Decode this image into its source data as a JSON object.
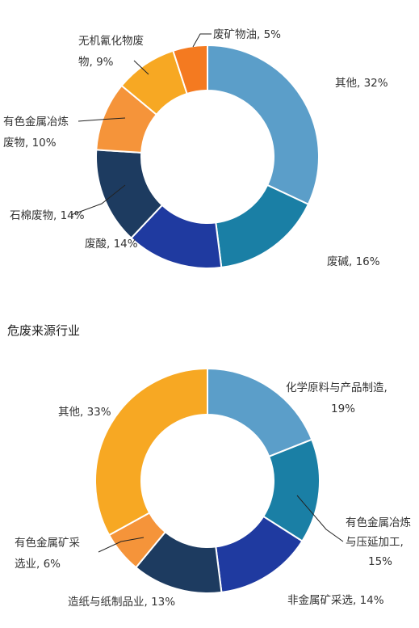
{
  "section_title": "危废来源行业",
  "chart_data": [
    {
      "type": "pie",
      "title": "",
      "slices": [
        {
          "label": [
            "其他, 32%"
          ],
          "value": 32,
          "color": "#5b9ec9"
        },
        {
          "label": [
            "废碱, 16%"
          ],
          "value": 16,
          "color": "#1a7fa5"
        },
        {
          "label": [
            "废酸, 14%"
          ],
          "value": 14,
          "color": "#1f3aa0"
        },
        {
          "label": [
            "石棉废物, 14%"
          ],
          "value": 14,
          "color": "#1d3b60"
        },
        {
          "label": [
            "有色金属冶炼",
            "废物, 10%"
          ],
          "value": 10,
          "color": "#f5943a"
        },
        {
          "label": [
            "无机氰化物废",
            "物, 9%"
          ],
          "value": 9,
          "color": "#f7a823"
        },
        {
          "label": [
            "废矿物油, 5%"
          ],
          "value": 5,
          "color": "#f47a20"
        }
      ]
    },
    {
      "type": "pie",
      "title": "",
      "slices": [
        {
          "label": [
            "化学原料与产品制造,",
            "19%"
          ],
          "value": 19,
          "color": "#5b9ec9"
        },
        {
          "label": [
            "有色金属冶炼",
            "与压延加工,",
            "15%"
          ],
          "value": 15,
          "color": "#1a7fa5"
        },
        {
          "label": [
            "非金属矿采选, 14%"
          ],
          "value": 14,
          "color": "#1f3aa0"
        },
        {
          "label": [
            "造纸与纸制品业, 13%"
          ],
          "value": 13,
          "color": "#1d3b60"
        },
        {
          "label": [
            "有色金属矿采",
            "选业, 6%"
          ],
          "value": 6,
          "color": "#f5943a"
        },
        {
          "label": [
            "其他, 33%"
          ],
          "value": 33,
          "color": "#f7a823"
        }
      ]
    }
  ]
}
